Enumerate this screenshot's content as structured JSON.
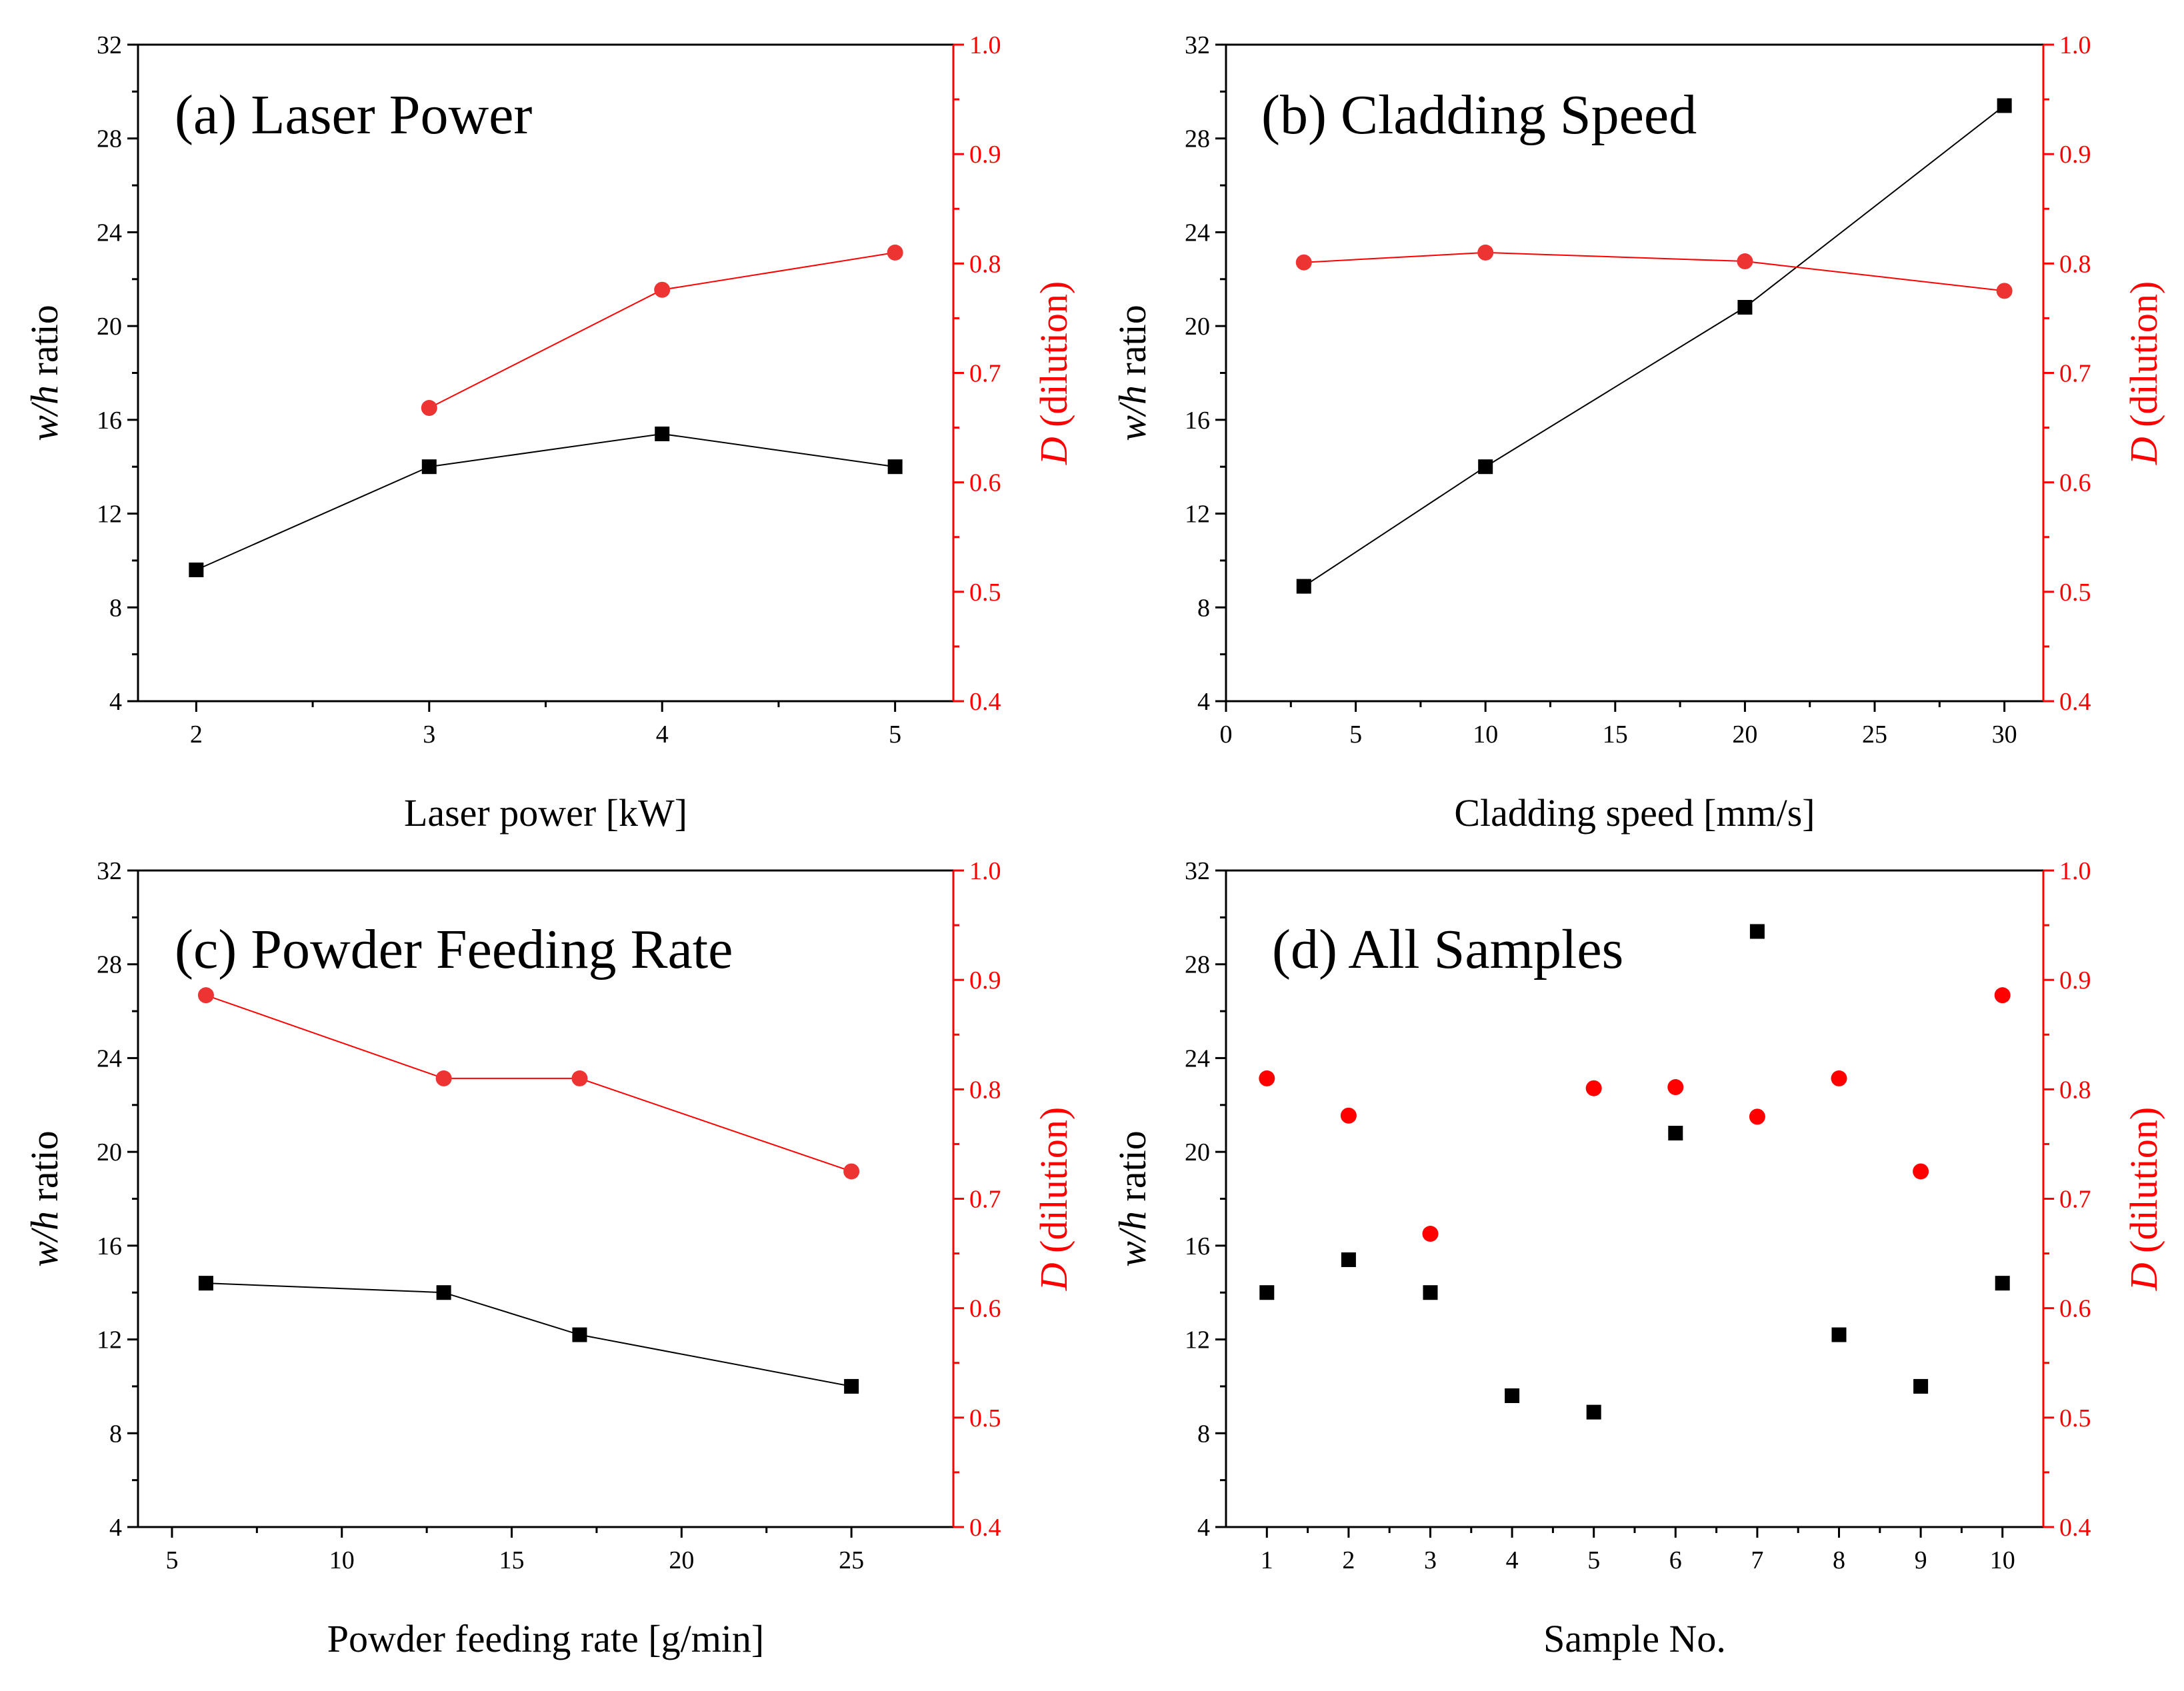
{
  "colors": {
    "black": "#000000",
    "red_line": "#ff0000",
    "red_marker": "#ee3333",
    "red_marker_scatter": "#ff0000",
    "axis": "#000000"
  },
  "chart_data": [
    {
      "id": "a",
      "type": "line",
      "title": "(a) Laser Power",
      "xlabel": "Laser power [kW]",
      "ylabel": {
        "italic": "w/h",
        "rest": " ratio"
      },
      "y2label": {
        "italic": "D",
        "rest": " (dilution)"
      },
      "xlim": [
        1.75,
        5.25
      ],
      "xticks": [
        "2",
        "3",
        "4",
        "5"
      ],
      "xtick_values": [
        2,
        3,
        4,
        5
      ],
      "ylim": [
        4,
        32
      ],
      "yticks": [
        "4",
        "8",
        "12",
        "16",
        "20",
        "24",
        "28",
        "32"
      ],
      "y2lim": [
        0.4,
        1.0
      ],
      "y2ticks": [
        "0.4",
        "0.5",
        "0.6",
        "0.7",
        "0.8",
        "0.9",
        "1.0"
      ],
      "connected": true,
      "series": [
        {
          "axis": "left",
          "x": [
            2,
            3,
            4,
            5
          ],
          "y": [
            9.6,
            14.0,
            15.4,
            14.0
          ]
        },
        {
          "axis": "right",
          "x": [
            3,
            4,
            5
          ],
          "y": [
            0.668,
            0.776,
            0.81
          ]
        }
      ]
    },
    {
      "id": "b",
      "type": "line",
      "title": "(b) Cladding Speed",
      "xlabel": "Cladding speed [mm/s]",
      "ylabel": {
        "italic": "w/h",
        "rest": " ratio"
      },
      "y2label": {
        "italic": "D",
        "rest": " (dilution)"
      },
      "xlim": [
        0,
        31.5
      ],
      "xticks": [
        "0",
        "5",
        "10",
        "15",
        "20",
        "25",
        "30"
      ],
      "xtick_values": [
        0,
        5,
        10,
        15,
        20,
        25,
        30
      ],
      "ylim": [
        4,
        32
      ],
      "yticks": [
        "4",
        "8",
        "12",
        "16",
        "20",
        "24",
        "28",
        "32"
      ],
      "y2lim": [
        0.4,
        1.0
      ],
      "y2ticks": [
        "0.4",
        "0.5",
        "0.6",
        "0.7",
        "0.8",
        "0.9",
        "1.0"
      ],
      "connected": true,
      "series": [
        {
          "axis": "left",
          "x": [
            3,
            10,
            20,
            30
          ],
          "y": [
            8.9,
            14.0,
            20.8,
            29.4
          ]
        },
        {
          "axis": "right",
          "x": [
            3,
            10,
            20,
            30
          ],
          "y": [
            0.801,
            0.81,
            0.802,
            0.775
          ]
        }
      ]
    },
    {
      "id": "c",
      "type": "line",
      "title": "(c) Powder Feeding Rate",
      "xlabel": "Powder feeding rate [g/min]",
      "ylabel": {
        "italic": "w/h",
        "rest": " ratio"
      },
      "y2label": {
        "italic": "D",
        "rest": " (dilution)"
      },
      "xlim": [
        4,
        28
      ],
      "xticks": [
        "5",
        "10",
        "15",
        "20",
        "25"
      ],
      "xtick_values": [
        5,
        10,
        15,
        20,
        25
      ],
      "ylim": [
        4,
        32
      ],
      "yticks": [
        "4",
        "8",
        "12",
        "16",
        "20",
        "24",
        "28",
        "32"
      ],
      "y2lim": [
        0.4,
        1.0
      ],
      "y2ticks": [
        "0.4",
        "0.5",
        "0.6",
        "0.7",
        "0.8",
        "0.9",
        "1.0"
      ],
      "connected": true,
      "series": [
        {
          "axis": "left",
          "x": [
            6,
            13,
            17,
            25
          ],
          "y": [
            14.4,
            14.0,
            12.2,
            10.0
          ]
        },
        {
          "axis": "right",
          "x": [
            6,
            13,
            17,
            25
          ],
          "y": [
            0.886,
            0.81,
            0.81,
            0.725
          ]
        }
      ]
    },
    {
      "id": "d",
      "type": "scatter",
      "title": "(d) All Samples",
      "xlabel": "Sample No.",
      "ylabel": {
        "italic": "w/h",
        "rest": " ratio"
      },
      "y2label": {
        "italic": "D",
        "rest": " (dilution)"
      },
      "xlim": [
        0.5,
        10.5
      ],
      "xticks": [
        "1",
        "2",
        "3",
        "4",
        "5",
        "6",
        "7",
        "8",
        "9",
        "10"
      ],
      "xtick_values": [
        1,
        2,
        3,
        4,
        5,
        6,
        7,
        8,
        9,
        10
      ],
      "ylim": [
        4,
        32
      ],
      "yticks": [
        "4",
        "8",
        "12",
        "16",
        "20",
        "24",
        "28",
        "32"
      ],
      "y2lim": [
        0.4,
        1.0
      ],
      "y2ticks": [
        "0.4",
        "0.5",
        "0.6",
        "0.7",
        "0.8",
        "0.9",
        "1.0"
      ],
      "connected": false,
      "series": [
        {
          "axis": "left",
          "x": [
            1,
            2,
            3,
            4,
            5,
            6,
            7,
            8,
            9,
            10
          ],
          "y": [
            14.0,
            15.4,
            14.0,
            9.6,
            8.9,
            20.8,
            29.4,
            12.2,
            10.0,
            14.4
          ]
        },
        {
          "axis": "right",
          "x": [
            1,
            2,
            3,
            4,
            5,
            6,
            7,
            8,
            9,
            10
          ],
          "y": [
            0.81,
            0.776,
            0.668,
            null,
            0.801,
            0.802,
            0.775,
            0.81,
            0.725,
            0.886
          ]
        }
      ]
    }
  ]
}
